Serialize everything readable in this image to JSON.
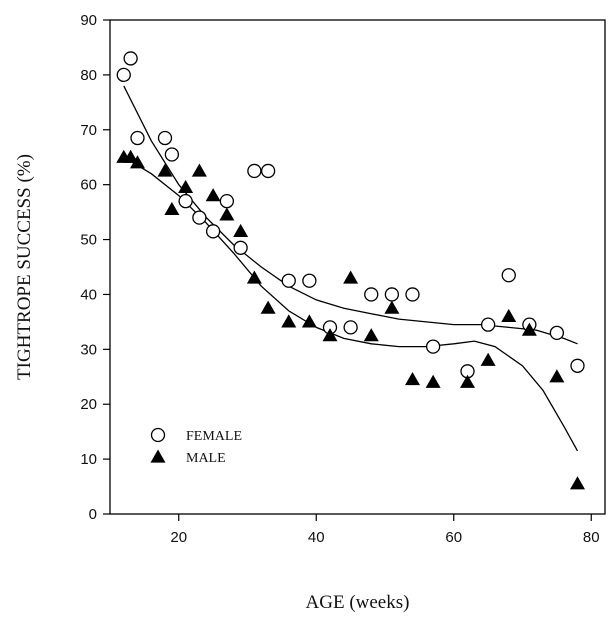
{
  "chart_data": {
    "type": "scatter",
    "title": "",
    "xlabel": "AGE (weeks)",
    "ylabel": "TIGHTROPE SUCCESS (%)",
    "xlim": [
      10,
      82
    ],
    "ylim": [
      0,
      90
    ],
    "xticks": [
      20,
      40,
      60,
      80
    ],
    "yticks": [
      0,
      10,
      20,
      30,
      40,
      50,
      60,
      70,
      80,
      90
    ],
    "grid": false,
    "legend_position": "lower-left",
    "series": [
      {
        "name": "FEMALE",
        "marker": "open-circle",
        "color": "#000000",
        "points": [
          [
            12,
            80
          ],
          [
            13,
            83
          ],
          [
            14,
            68.5
          ],
          [
            18,
            68.5
          ],
          [
            19,
            65.5
          ],
          [
            21,
            57
          ],
          [
            23,
            54
          ],
          [
            25,
            51.5
          ],
          [
            27,
            57
          ],
          [
            29,
            48.5
          ],
          [
            31,
            62.5
          ],
          [
            33,
            62.5
          ],
          [
            36,
            42.5
          ],
          [
            39,
            42.5
          ],
          [
            42,
            34
          ],
          [
            45,
            34
          ],
          [
            48,
            40
          ],
          [
            51,
            40
          ],
          [
            54,
            40
          ],
          [
            57,
            30.5
          ],
          [
            62,
            26
          ],
          [
            65,
            34.5
          ],
          [
            68,
            43.5
          ],
          [
            71,
            34.5
          ],
          [
            75,
            33
          ],
          [
            78,
            27
          ]
        ],
        "fit_curve": [
          [
            12,
            78
          ],
          [
            16,
            68
          ],
          [
            20,
            60
          ],
          [
            24,
            54
          ],
          [
            28,
            49
          ],
          [
            32,
            45
          ],
          [
            36,
            41.5
          ],
          [
            40,
            39
          ],
          [
            44,
            37.5
          ],
          [
            48,
            36.5
          ],
          [
            52,
            35.5
          ],
          [
            56,
            35
          ],
          [
            60,
            34.5
          ],
          [
            64,
            34.5
          ],
          [
            68,
            34
          ],
          [
            72,
            33.5
          ],
          [
            76,
            32
          ],
          [
            78,
            31
          ]
        ]
      },
      {
        "name": "MALE",
        "marker": "filled-triangle",
        "color": "#000000",
        "points": [
          [
            12,
            65
          ],
          [
            13,
            65
          ],
          [
            14,
            64
          ],
          [
            18,
            62.5
          ],
          [
            19,
            55.5
          ],
          [
            21,
            59.5
          ],
          [
            23,
            62.5
          ],
          [
            25,
            58
          ],
          [
            27,
            54.5
          ],
          [
            29,
            51.5
          ],
          [
            31,
            43
          ],
          [
            33,
            37.5
          ],
          [
            36,
            35
          ],
          [
            39,
            35
          ],
          [
            42,
            32.5
          ],
          [
            45,
            43
          ],
          [
            48,
            32.5
          ],
          [
            51,
            37.5
          ],
          [
            54,
            24.5
          ],
          [
            57,
            24
          ],
          [
            62,
            24
          ],
          [
            65,
            28
          ],
          [
            68,
            36
          ],
          [
            71,
            33.5
          ],
          [
            75,
            25
          ],
          [
            78,
            5.5
          ]
        ],
        "fit_curve": [
          [
            12,
            65
          ],
          [
            16,
            62
          ],
          [
            20,
            58
          ],
          [
            24,
            53
          ],
          [
            28,
            47.5
          ],
          [
            32,
            41.5
          ],
          [
            36,
            37
          ],
          [
            40,
            34
          ],
          [
            44,
            32
          ],
          [
            48,
            31
          ],
          [
            52,
            30.5
          ],
          [
            56,
            30.5
          ],
          [
            60,
            31
          ],
          [
            63,
            31.5
          ],
          [
            66,
            30.5
          ],
          [
            70,
            27
          ],
          [
            73,
            22.5
          ],
          [
            76,
            16
          ],
          [
            78,
            11.5
          ]
        ]
      }
    ]
  }
}
